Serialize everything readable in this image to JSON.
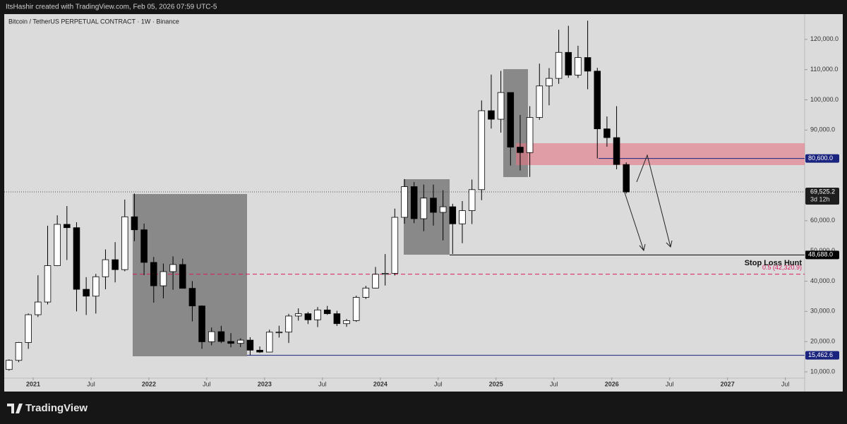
{
  "header": {
    "text": "ItsHashir created with TradingView.com, Feb 05, 2026 07:59 UTC-5"
  },
  "footer": {
    "brand": "TradingView"
  },
  "chart_data": {
    "type": "candlestick",
    "title": "Bitcoin / TetherUS PERPETUAL CONTRACT · 1W · Binance",
    "x": [
      "2020-10",
      "2020-11",
      "2020-12",
      "2021-01",
      "2021-02",
      "2021-03",
      "2021-04",
      "2021-05",
      "2021-06",
      "2021-07",
      "2021-08",
      "2021-09",
      "2021-10",
      "2021-11",
      "2021-12",
      "2022-01",
      "2022-02",
      "2022-03",
      "2022-04",
      "2022-05",
      "2022-06",
      "2022-07",
      "2022-08",
      "2022-09",
      "2022-10",
      "2022-11",
      "2022-12",
      "2023-01",
      "2023-02",
      "2023-03",
      "2023-04",
      "2023-05",
      "2023-06",
      "2023-07",
      "2023-08",
      "2023-09",
      "2023-10",
      "2023-11",
      "2023-12",
      "2024-01",
      "2024-02",
      "2024-03",
      "2024-04",
      "2024-05",
      "2024-06",
      "2024-07",
      "2024-08",
      "2024-09",
      "2024-10",
      "2024-11",
      "2024-12",
      "2025-01",
      "2025-02",
      "2025-03",
      "2025-04",
      "2025-05",
      "2025-06",
      "2025-07",
      "2025-08",
      "2025-09",
      "2025-10",
      "2025-11",
      "2025-12",
      "2026-01",
      "2026-02"
    ],
    "open": [
      10780,
      13800,
      19700,
      28900,
      33100,
      45140,
      58800,
      57700,
      37300,
      35040,
      41460,
      47100,
      43820,
      61300,
      57000,
      46210,
      38470,
      43160,
      45510,
      37630,
      31800,
      19940,
      23290,
      20050,
      19420,
      20490,
      17160,
      16540,
      23120,
      23140,
      28460,
      29230,
      27210,
      30470,
      29230,
      25940,
      26960,
      34640,
      37720,
      42280,
      42580,
      61130,
      71280,
      60670,
      67490,
      62770,
      64620,
      58970,
      63330,
      70290,
      96400,
      93580,
      102430,
      84350,
      82550,
      94170,
      104600,
      107100,
      115700,
      108200,
      114000,
      109500,
      90400,
      87500,
      78600
    ],
    "high": [
      14100,
      19860,
      29300,
      41950,
      58350,
      61800,
      64850,
      59500,
      41330,
      42400,
      50500,
      52920,
      67000,
      69000,
      59050,
      47990,
      45820,
      48190,
      47440,
      40020,
      31980,
      24670,
      25210,
      22800,
      21080,
      21470,
      18390,
      23960,
      25250,
      29190,
      31000,
      29820,
      31430,
      31800,
      30200,
      27480,
      35200,
      38450,
      44700,
      48970,
      64000,
      73780,
      72800,
      71980,
      71950,
      70080,
      65600,
      66500,
      73620,
      99800,
      108350,
      109590,
      102500,
      95000,
      97900,
      111980,
      110500,
      123200,
      124500,
      117900,
      126200,
      110600,
      94500,
      97900,
      79300
    ],
    "low": [
      10370,
      13200,
      17600,
      28130,
      32300,
      45000,
      47000,
      30000,
      28800,
      29280,
      37330,
      39600,
      43280,
      53250,
      42000,
      32900,
      34320,
      37150,
      37580,
      26700,
      17620,
      18780,
      19520,
      18120,
      18190,
      15480,
      16260,
      16500,
      21350,
      19550,
      26940,
      25810,
      24800,
      28860,
      25170,
      24900,
      26550,
      34100,
      37610,
      38550,
      41880,
      59000,
      59190,
      56550,
      58400,
      53500,
      49000,
      52550,
      58900,
      66800,
      90500,
      89160,
      78250,
      76600,
      74500,
      93380,
      98200,
      105300,
      107300,
      107250,
      103500,
      80600,
      84500,
      77000,
      69000
    ],
    "close": [
      13800,
      19700,
      28900,
      33100,
      45140,
      58800,
      57700,
      37300,
      35040,
      41460,
      47100,
      43820,
      61300,
      57000,
      46210,
      38470,
      43160,
      45510,
      37630,
      31800,
      19940,
      23290,
      20050,
      19420,
      20490,
      17160,
      16540,
      23120,
      23140,
      28460,
      29230,
      27210,
      30470,
      29230,
      25940,
      26960,
      34640,
      37720,
      42280,
      42580,
      61130,
      71280,
      60670,
      67490,
      62770,
      64620,
      58970,
      63330,
      70290,
      96400,
      93580,
      102430,
      84350,
      82550,
      94170,
      104600,
      107100,
      115700,
      108200,
      114000,
      109500,
      90400,
      87500,
      78600,
      69525.2
    ],
    "xlim": [
      "2020-10",
      "2027-09"
    ],
    "xticks": [
      {
        "value": "2021-01",
        "label": "2021"
      },
      {
        "value": "2021-07",
        "label": "Jul"
      },
      {
        "value": "2022-01",
        "label": "2022"
      },
      {
        "value": "2022-07",
        "label": "Jul"
      },
      {
        "value": "2023-01",
        "label": "2023"
      },
      {
        "value": "2023-07",
        "label": "Jul"
      },
      {
        "value": "2024-01",
        "label": "2024"
      },
      {
        "value": "2024-07",
        "label": "Jul"
      },
      {
        "value": "2025-01",
        "label": "2025"
      },
      {
        "value": "2025-07",
        "label": "Jul"
      },
      {
        "value": "2026-01",
        "label": "2026"
      },
      {
        "value": "2026-07",
        "label": "Jul"
      },
      {
        "value": "2027-01",
        "label": "2027"
      },
      {
        "value": "2027-07",
        "label": "Jul"
      }
    ],
    "ylim": [
      8140,
      128370
    ],
    "yticks": [
      {
        "value": 120000,
        "label": "120,000.0"
      },
      {
        "value": 110000,
        "label": "110,000.0"
      },
      {
        "value": 100000,
        "label": "100,000.0"
      },
      {
        "value": 90000,
        "label": "90,000.0"
      },
      {
        "value": 60000,
        "label": "60,000.0"
      },
      {
        "value": 50000,
        "label": "50,000.0"
      },
      {
        "value": 40000,
        "label": "40,000.0"
      },
      {
        "value": 30000,
        "label": "30,000.0"
      },
      {
        "value": 20000,
        "label": "20,000.0"
      },
      {
        "value": 10000,
        "label": "10,000.0"
      }
    ],
    "up_color": "#ffffff",
    "down_color": "#000000",
    "last_price": {
      "value": 69525.2,
      "label": "69,525.2",
      "countdown": "3d 12h"
    },
    "levels": [
      {
        "value": 80600,
        "label": "80,600.0",
        "color": "#1a237e"
      },
      {
        "value": 48688,
        "label": "48,688.0",
        "color": "#000000"
      },
      {
        "value": 15462.6,
        "label": "15,462.6",
        "color": "#1a237e"
      }
    ],
    "fib": {
      "value": 42320.9,
      "label": "0.5 (42,320.9)",
      "color": "#d81b60"
    },
    "annotation": "Stop Loss Hunt"
  }
}
